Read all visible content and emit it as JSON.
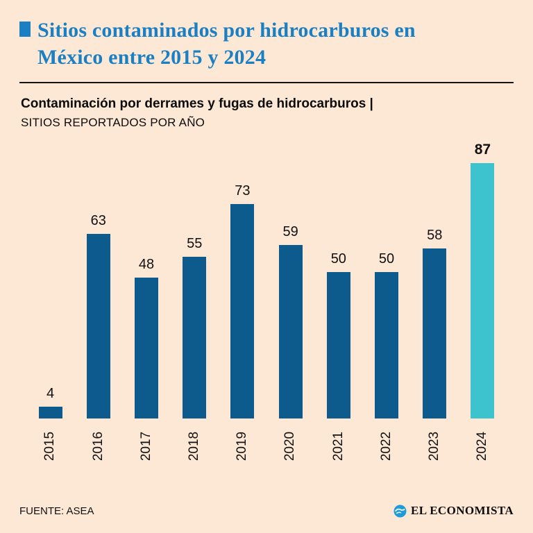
{
  "header": {
    "title": "Sitios contaminados por hidrocarburos en México entre 2015 y 2024",
    "subtitle_bold": "Contaminación por derrames y fugas de hidrocarburos |",
    "subtitle_caps": "SITIOS REPORTADOS POR AÑO"
  },
  "chart_data": {
    "type": "bar",
    "categories": [
      "2015",
      "2016",
      "2017",
      "2018",
      "2019",
      "2020",
      "2021",
      "2022",
      "2023",
      "2024"
    ],
    "values": [
      4,
      63,
      48,
      55,
      73,
      59,
      50,
      50,
      58,
      87
    ],
    "title": "Contaminación por derrames y fugas de hidrocarburos | SITIOS REPORTADOS POR AÑO",
    "xlabel": "",
    "ylabel": "",
    "ylim": [
      0,
      87
    ],
    "grid": false,
    "legend": "none",
    "bar_color": "#0d5a8c",
    "highlight_index": 9,
    "highlight_color": "#3cc3cd",
    "value_labels_shown": true
  },
  "footer": {
    "source": "FUENTE: ASEA",
    "brand": "EL ECONOMISTA"
  },
  "colors": {
    "background": "#fce8d5",
    "title_blue": "#1a7fc3",
    "bar_blue": "#0d5a8c",
    "bar_teal": "#3cc3cd",
    "text": "#111111"
  }
}
